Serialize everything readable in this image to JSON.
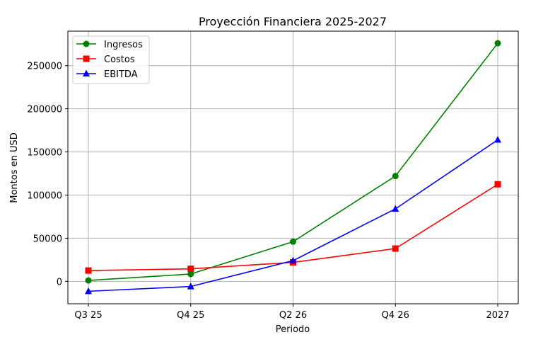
{
  "chart_data": {
    "type": "line",
    "title": "Proyección Financiera 2025-2027",
    "xlabel": "Periodo",
    "ylabel": "Montos en USD",
    "categories": [
      "Q3 25",
      "Q4 25",
      "Q2 26",
      "Q4 26",
      "2027"
    ],
    "yticks": [
      0,
      50000,
      100000,
      150000,
      200000,
      250000
    ],
    "ylim": [
      -26000,
      290000
    ],
    "grid": true,
    "legend_position": "top-left",
    "series": [
      {
        "name": "Ingresos",
        "color": "#008000",
        "marker": "circle",
        "values": [
          1000,
          8500,
          46000,
          122000,
          276000
        ]
      },
      {
        "name": "Costos",
        "color": "#ff0000",
        "marker": "square",
        "values": [
          12500,
          14500,
          22000,
          38000,
          112500
        ]
      },
      {
        "name": "EBITDA",
        "color": "#0000ff",
        "marker": "triangle",
        "values": [
          -11500,
          -6000,
          24000,
          84000,
          164000
        ]
      }
    ]
  }
}
